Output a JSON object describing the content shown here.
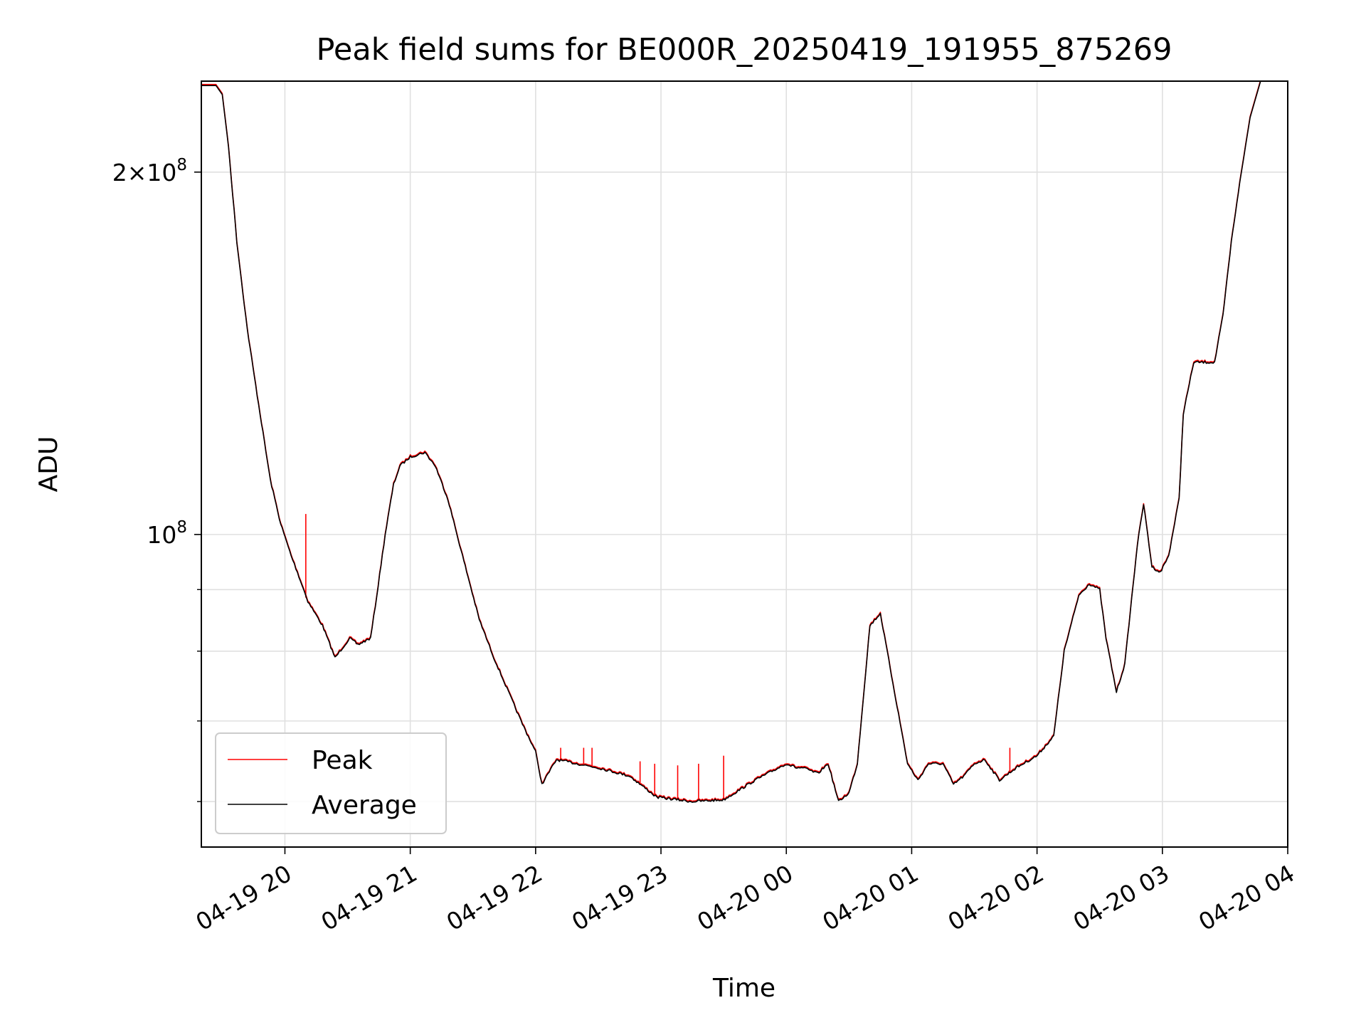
{
  "chart_data": {
    "type": "line",
    "title": "Peak field sums for BE000R_20250419_191955_875269",
    "xlabel": "Time",
    "ylabel": "ADU",
    "yscale": "log",
    "ylim": [
      55000000.0,
      238000000.0
    ],
    "xlim": [
      "2025-04-19 19:20",
      "2025-04-20 04:00"
    ],
    "grid": true,
    "legend": {
      "placement": "lower-left",
      "entries": [
        "Peak",
        "Average"
      ]
    },
    "x_ticks": [
      "04-19 20",
      "04-19 21",
      "04-19 22",
      "04-19 23",
      "04-20 00",
      "04-20 01",
      "04-20 02",
      "04-20 03",
      "04-20 04"
    ],
    "y_major_ticks": [
      {
        "value": 100000000,
        "mantissa": "",
        "base": "10",
        "exp": "8"
      },
      {
        "value": 200000000,
        "mantissa": "2×",
        "base": "10",
        "exp": "8"
      }
    ],
    "y_minor_ticks": [
      60000000,
      70000000,
      80000000,
      90000000
    ],
    "series": [
      {
        "name": "Average",
        "color": "#000000",
        "x": [
          "2025-04-19 19:20",
          "2025-04-19 19:27",
          "2025-04-19 19:30",
          "2025-04-19 19:33",
          "2025-04-19 19:37",
          "2025-04-19 19:42",
          "2025-04-19 19:46",
          "2025-04-19 19:53",
          "2025-04-19 19:58",
          "2025-04-19 20:03",
          "2025-04-19 20:06",
          "2025-04-19 20:11",
          "2025-04-19 20:18",
          "2025-04-19 20:24",
          "2025-04-19 20:31",
          "2025-04-19 20:35",
          "2025-04-19 20:41",
          "2025-04-19 20:44",
          "2025-04-19 20:48",
          "2025-04-19 20:52",
          "2025-04-19 20:55",
          "2025-04-19 21:00",
          "2025-04-19 21:07",
          "2025-04-19 21:12",
          "2025-04-19 21:18",
          "2025-04-19 21:25",
          "2025-04-19 21:33",
          "2025-04-19 21:40",
          "2025-04-19 21:47",
          "2025-04-19 21:53",
          "2025-04-19 22:00",
          "2025-04-19 22:03",
          "2025-04-19 22:10",
          "2025-04-19 22:30",
          "2025-04-19 22:45",
          "2025-04-19 22:58",
          "2025-04-19 23:15",
          "2025-04-19 23:30",
          "2025-04-19 23:45",
          "2025-04-20 00:00",
          "2025-04-20 00:05",
          "2025-04-20 00:08",
          "2025-04-20 00:15",
          "2025-04-20 00:20",
          "2025-04-20 00:25",
          "2025-04-20 00:30",
          "2025-04-20 00:34",
          "2025-04-20 00:40",
          "2025-04-20 00:45",
          "2025-04-20 00:53",
          "2025-04-20 00:58",
          "2025-04-20 01:03",
          "2025-04-20 01:08",
          "2025-04-20 01:15",
          "2025-04-20 01:20",
          "2025-04-20 01:25",
          "2025-04-20 01:30",
          "2025-04-20 01:35",
          "2025-04-20 01:42",
          "2025-04-20 01:50",
          "2025-04-20 02:00",
          "2025-04-20 02:08",
          "2025-04-20 02:13",
          "2025-04-20 02:20",
          "2025-04-20 02:25",
          "2025-04-20 02:30",
          "2025-04-20 02:33",
          "2025-04-20 02:38",
          "2025-04-20 02:42",
          "2025-04-20 02:48",
          "2025-04-20 02:51",
          "2025-04-20 02:55",
          "2025-04-20 02:59",
          "2025-04-20 03:03",
          "2025-04-20 03:08",
          "2025-04-20 03:10",
          "2025-04-20 03:15",
          "2025-04-20 03:21",
          "2025-04-20 03:25",
          "2025-04-20 03:29",
          "2025-04-20 03:33",
          "2025-04-20 03:37",
          "2025-04-20 03:42",
          "2025-04-20 03:47"
        ],
        "y": [
          236000000,
          236000000,
          232000000,
          210000000,
          175000000,
          148000000,
          133000000,
          111000000,
          102000000,
          96000000,
          93000000,
          88000000,
          84000000,
          79000000,
          82000000,
          81000000,
          82000000,
          89000000,
          100000000,
          110000000,
          114000000,
          116000000,
          117000000,
          114000000,
          107000000,
          96000000,
          85000000,
          79000000,
          74000000,
          70000000,
          66000000,
          62000000,
          65000000,
          64000000,
          63000000,
          60500000,
          60000000,
          60200000,
          62500000,
          64500000,
          64000000,
          64000000,
          63300000,
          64500000,
          60000000,
          61000000,
          64500000,
          84000000,
          86000000,
          72000000,
          64500000,
          62500000,
          64500000,
          64500000,
          62000000,
          63000000,
          64500000,
          65000000,
          62500000,
          64000000,
          65500000,
          68000000,
          80000000,
          89000000,
          91000000,
          90000000,
          82000000,
          74000000,
          78000000,
          98000000,
          106000000,
          94000000,
          93000000,
          96000000,
          107000000,
          126000000,
          139000000,
          139000000,
          139000000,
          152000000,
          175000000,
          196000000,
          222000000,
          238000000
        ]
      },
      {
        "name": "Peak",
        "color": "#ff0000",
        "spikes": [
          {
            "x": "2025-04-19 20:10",
            "y": 104000000
          },
          {
            "x": "2025-04-19 20:34",
            "y": 81500000
          },
          {
            "x": "2025-04-19 22:12",
            "y": 66500000
          },
          {
            "x": "2025-04-19 22:23",
            "y": 66500000
          },
          {
            "x": "2025-04-19 22:27",
            "y": 66500000
          },
          {
            "x": "2025-04-19 22:50",
            "y": 64800000
          },
          {
            "x": "2025-04-19 22:57",
            "y": 64500000
          },
          {
            "x": "2025-04-19 23:08",
            "y": 64300000
          },
          {
            "x": "2025-04-19 23:18",
            "y": 64500000
          },
          {
            "x": "2025-04-19 23:30",
            "y": 65500000
          },
          {
            "x": "2025-04-20 01:47",
            "y": 66500000
          }
        ]
      }
    ]
  }
}
